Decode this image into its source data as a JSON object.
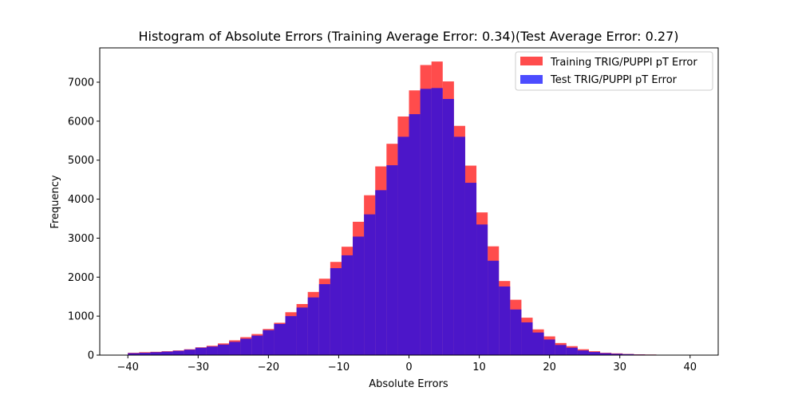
{
  "chart_data": {
    "type": "bar",
    "title": "Histogram of Absolute Errors (Training Average Error: 0.34)(Test Average Error: 0.27)",
    "xlabel": "Absolute Errors",
    "ylabel": "Frequency",
    "xlim": [
      -44,
      44
    ],
    "ylim": [
      0,
      7880
    ],
    "xticks": [
      -40,
      -30,
      -20,
      -10,
      0,
      10,
      20,
      30,
      40
    ],
    "xtick_labels": [
      "−40",
      "−30",
      "−20",
      "−10",
      "0",
      "10",
      "20",
      "30",
      "40"
    ],
    "yticks": [
      0,
      1000,
      2000,
      3000,
      4000,
      5000,
      6000,
      7000
    ],
    "ytick_labels": [
      "0",
      "1000",
      "2000",
      "3000",
      "4000",
      "5000",
      "6000",
      "7000"
    ],
    "bin_edges": [
      -40,
      -38.4,
      -36.8,
      -35.2,
      -33.6,
      -32,
      -30.4,
      -28.8,
      -27.2,
      -25.6,
      -24,
      -22.4,
      -20.8,
      -19.2,
      -17.6,
      -16,
      -14.4,
      -12.8,
      -11.2,
      -9.6,
      -8,
      -6.4,
      -4.8,
      -3.2,
      -1.6,
      0,
      1.6,
      3.2,
      4.8,
      6.4,
      8,
      9.6,
      11.2,
      12.8,
      14.4,
      16,
      17.6,
      19.2,
      20.8,
      22.4,
      24,
      25.6,
      27.2,
      28.8,
      30.4,
      32,
      33.6,
      35.2,
      36.8,
      38.4,
      40
    ],
    "legend_position": "upper right",
    "series": [
      {
        "name": "Training TRIG/PUPPI pT Error",
        "color": "#ff0000",
        "alpha": 0.7,
        "values": [
          60,
          75,
          85,
          100,
          120,
          150,
          200,
          240,
          300,
          380,
          460,
          540,
          670,
          830,
          1100,
          1310,
          1620,
          1960,
          2390,
          2780,
          3420,
          4100,
          4840,
          5420,
          6120,
          6790,
          7440,
          7530,
          7020,
          5880,
          4860,
          3660,
          2790,
          1900,
          1420,
          960,
          660,
          480,
          310,
          230,
          150,
          100,
          60,
          45,
          30,
          20,
          15,
          10,
          8,
          5
        ]
      },
      {
        "name": "Test TRIG/PUPPI pT Error",
        "color": "#0000ff",
        "alpha": 0.7,
        "values": [
          50,
          60,
          75,
          90,
          110,
          140,
          190,
          220,
          270,
          340,
          420,
          500,
          640,
          800,
          1000,
          1220,
          1480,
          1820,
          2230,
          2560,
          3040,
          3610,
          4230,
          4870,
          5600,
          6180,
          6830,
          6850,
          6570,
          5600,
          4420,
          3350,
          2420,
          1760,
          1170,
          840,
          580,
          400,
          260,
          190,
          120,
          80,
          50,
          35,
          25,
          15,
          12,
          8,
          6,
          4
        ]
      }
    ]
  }
}
